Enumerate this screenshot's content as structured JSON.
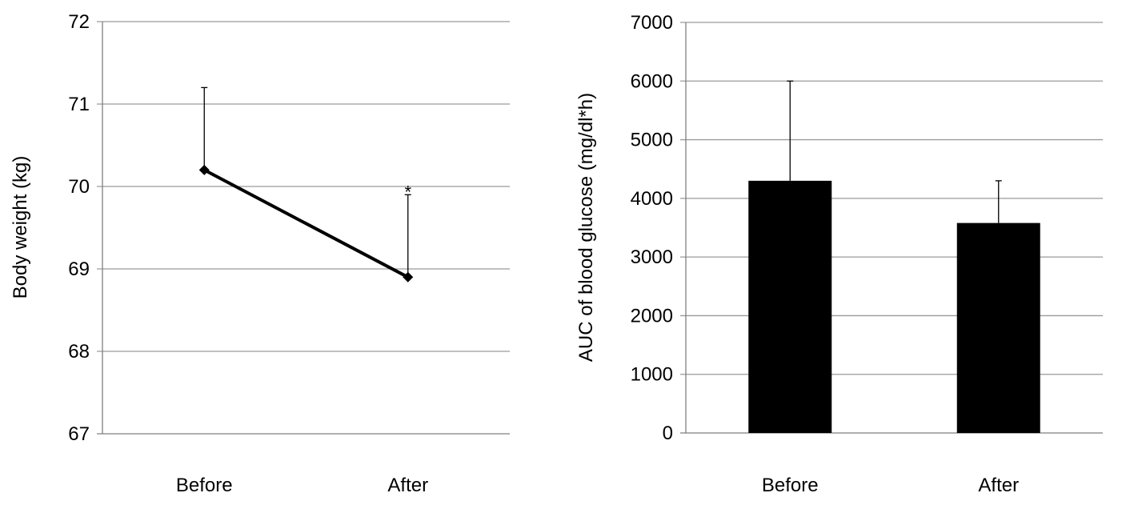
{
  "chart_data": [
    {
      "type": "line",
      "categories": [
        "Before",
        "After"
      ],
      "series": [
        {
          "values": [
            70.2,
            68.9
          ],
          "error_upper": [
            1.0,
            1.0
          ],
          "color": "#000000",
          "marker": "diamond"
        }
      ],
      "annotations": [
        {
          "category": "After",
          "text": "*"
        }
      ],
      "ylabel": "Body weight (kg)",
      "xlabel": "",
      "ylim": [
        67,
        72
      ],
      "yticks": [
        67,
        68,
        69,
        70,
        71,
        72
      ],
      "grid": true
    },
    {
      "type": "bar",
      "categories": [
        "Before",
        "After"
      ],
      "values": [
        4300,
        3580
      ],
      "error_upper": [
        1700,
        720
      ],
      "color": "#000000",
      "ylabel": "AUC of blood glucose (mg/dl*h)",
      "xlabel": "",
      "ylim": [
        0,
        7000
      ],
      "yticks": [
        0,
        1000,
        2000,
        3000,
        4000,
        5000,
        6000,
        7000
      ],
      "grid": true
    }
  ]
}
